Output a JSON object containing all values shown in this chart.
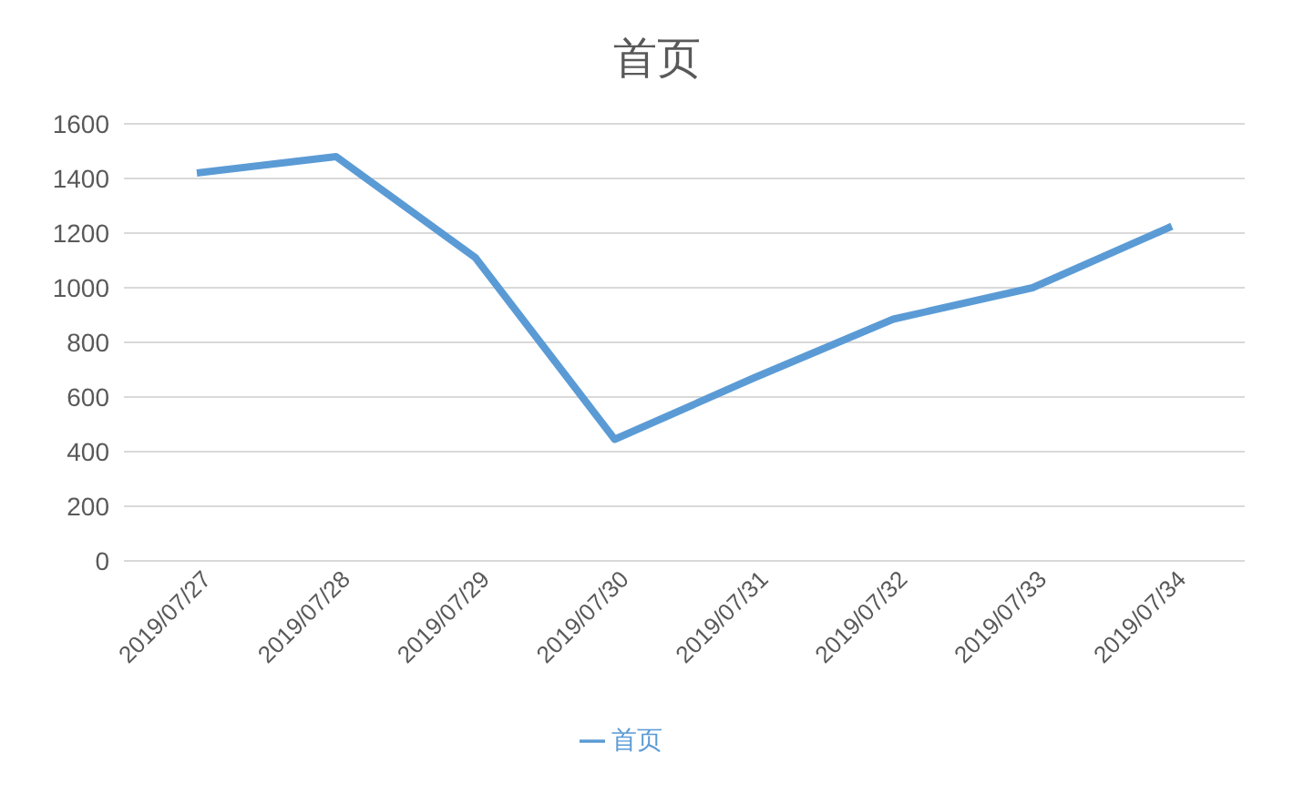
{
  "chart_data": {
    "type": "line",
    "title": "首页",
    "categories": [
      "2019/07/27",
      "2019/07/28",
      "2019/07/29",
      "2019/07/30",
      "2019/07/31",
      "2019/07/32",
      "2019/07/33",
      "2019/07/34"
    ],
    "series": [
      {
        "name": "首页",
        "color": "#5b9bd5",
        "values": [
          1420,
          1480,
          1110,
          445,
          670,
          885,
          1000,
          1225
        ]
      }
    ],
    "ylim": [
      0,
      1600
    ],
    "yticks": [
      0,
      200,
      400,
      600,
      800,
      1000,
      1200,
      1400,
      1600
    ],
    "grid": "y",
    "legend": "bottom",
    "marker": "none",
    "line_style": "solid"
  }
}
